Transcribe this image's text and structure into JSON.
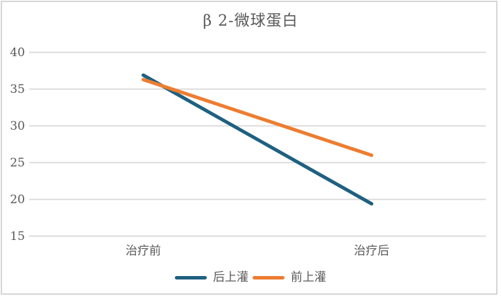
{
  "page": {
    "background": "#FFFFFF",
    "border_color": "#D6D6D6"
  },
  "chart_data": {
    "type": "line",
    "title": "β 2-微球蛋白",
    "categories": [
      "治疗前",
      "治疗后"
    ],
    "series": [
      {
        "name": "后上灌",
        "values": [
          36.9,
          19.4
        ],
        "color": "#1F6080"
      },
      {
        "name": "前上灌",
        "values": [
          36.3,
          26.0
        ],
        "color": "#ED7D31"
      }
    ],
    "ylim": [
      15,
      40
    ],
    "yticks": [
      15,
      20,
      25,
      30,
      35,
      40
    ],
    "grid": true,
    "gridline_color": "#D9D9D9",
    "text_color": "#595959",
    "legend_position": "bottom",
    "line_width": 5
  }
}
